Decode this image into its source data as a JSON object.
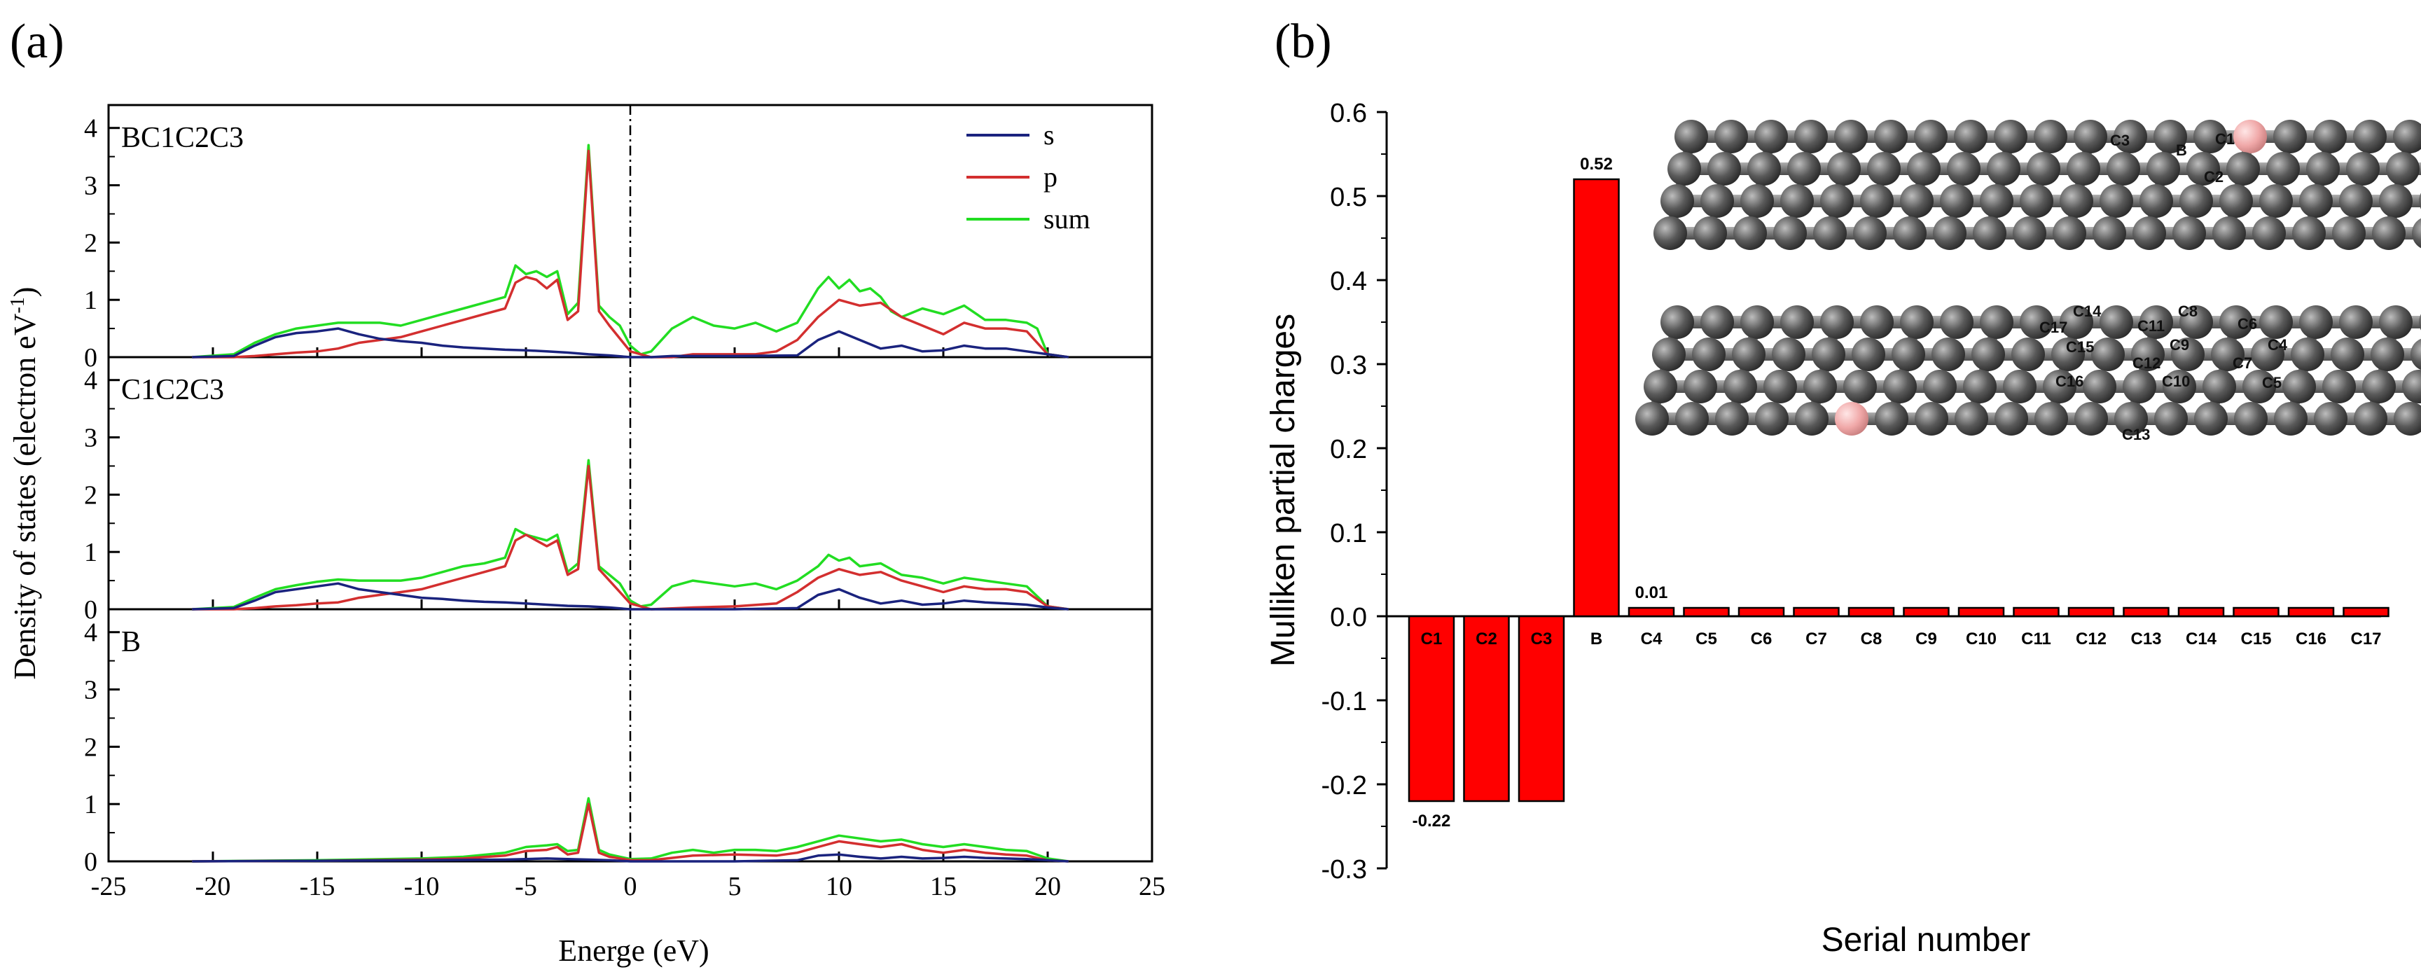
{
  "panel_labels": {
    "a": "(a)",
    "b": "(b)"
  },
  "colors": {
    "s": "#1a237e",
    "p": "#d32f2f",
    "sum": "#22dd22",
    "bar": "#ff0000",
    "atom_c": "#555555",
    "atom_b": "#f0a8a8"
  },
  "chart_data": [
    {
      "type": "line",
      "title": "",
      "xlabel": "Energe (eV)",
      "ylabel": "Density of states (electron eV",
      "ylabel_sup": "-1",
      "ylabel_close": ")",
      "xlim": [
        -25,
        25
      ],
      "xticks": [
        "-25",
        "-20",
        "-15",
        "-10",
        "-5",
        "0",
        "5",
        "10",
        "15",
        "20",
        "25"
      ],
      "ylim": [
        0,
        4.4
      ],
      "yticks": [
        "0",
        "1",
        "2",
        "3",
        "4"
      ],
      "fermi_level": 0,
      "legend": {
        "placement": "top-right",
        "entries": [
          "s",
          "p",
          "sum"
        ]
      },
      "subplots": [
        {
          "label": "BC1C2C3",
          "series": [
            {
              "name": "s",
              "x": [
                -21,
                -19,
                -18,
                -17,
                -16,
                -15,
                -14,
                -13,
                -12,
                -11,
                -10,
                -9,
                -8,
                -7,
                -6,
                -5,
                -4,
                -3,
                -2,
                -1,
                0,
                1,
                2,
                5,
                8,
                9,
                10,
                11,
                12,
                13,
                14,
                15,
                16,
                17,
                18,
                19,
                20,
                21
              ],
              "values": [
                0,
                0.02,
                0.2,
                0.35,
                0.42,
                0.45,
                0.5,
                0.4,
                0.32,
                0.28,
                0.25,
                0.2,
                0.17,
                0.15,
                0.13,
                0.12,
                0.1,
                0.08,
                0.05,
                0.03,
                0,
                0,
                0.02,
                0.02,
                0.03,
                0.3,
                0.45,
                0.3,
                0.15,
                0.2,
                0.1,
                0.12,
                0.2,
                0.15,
                0.15,
                0.1,
                0.05,
                0
              ]
            },
            {
              "name": "p",
              "x": [
                -21,
                -19,
                -18,
                -17,
                -16,
                -15,
                -14,
                -13,
                -12,
                -11,
                -10,
                -9,
                -8,
                -7,
                -6,
                -5.5,
                -5,
                -4.5,
                -4,
                -3.5,
                -3,
                -2.5,
                -2,
                -1.5,
                -1,
                0,
                1,
                2,
                3,
                5,
                6,
                7,
                8,
                9,
                10,
                11,
                12,
                13,
                14,
                15,
                16,
                17,
                18,
                19,
                20,
                21
              ],
              "values": [
                0,
                0,
                0.02,
                0.05,
                0.08,
                0.1,
                0.15,
                0.25,
                0.3,
                0.35,
                0.45,
                0.55,
                0.65,
                0.75,
                0.85,
                1.3,
                1.4,
                1.35,
                1.2,
                1.35,
                0.65,
                0.8,
                3.6,
                0.8,
                0.55,
                0.1,
                0,
                0,
                0.05,
                0.05,
                0.05,
                0.1,
                0.3,
                0.7,
                1.0,
                0.9,
                0.95,
                0.7,
                0.55,
                0.4,
                0.6,
                0.5,
                0.5,
                0.45,
                0.05,
                0
              ]
            },
            {
              "name": "sum",
              "x": [
                -21,
                -19,
                -18,
                -17,
                -16,
                -15,
                -14,
                -13,
                -12,
                -11,
                -10,
                -9,
                -8,
                -7,
                -6,
                -5.5,
                -5,
                -4.5,
                -4,
                -3.5,
                -3,
                -2.5,
                -2,
                -1.5,
                -1,
                -0.5,
                0,
                0.5,
                1,
                2,
                3,
                4,
                5,
                6,
                7,
                8,
                8.5,
                9,
                9.5,
                10,
                10.5,
                11,
                11.5,
                12,
                12.5,
                13,
                14,
                15,
                16,
                17,
                18,
                19,
                19.5,
                20,
                21
              ],
              "values": [
                0,
                0.05,
                0.25,
                0.4,
                0.5,
                0.55,
                0.6,
                0.6,
                0.6,
                0.55,
                0.65,
                0.75,
                0.85,
                0.95,
                1.05,
                1.6,
                1.45,
                1.5,
                1.4,
                1.5,
                0.75,
                0.95,
                3.7,
                0.9,
                0.7,
                0.55,
                0.2,
                0.05,
                0.1,
                0.5,
                0.7,
                0.55,
                0.5,
                0.6,
                0.45,
                0.6,
                0.9,
                1.2,
                1.4,
                1.2,
                1.35,
                1.15,
                1.2,
                1.05,
                0.8,
                0.7,
                0.85,
                0.75,
                0.9,
                0.65,
                0.65,
                0.6,
                0.5,
                0.05,
                0
              ]
            }
          ]
        },
        {
          "label": "C1C2C3",
          "series": [
            {
              "name": "s",
              "x": [
                -21,
                -19,
                -18,
                -17,
                -16,
                -15,
                -14,
                -13,
                -12,
                -11,
                -10,
                -9,
                -8,
                -7,
                -6,
                -5,
                -4,
                -3,
                -2,
                -1,
                0,
                5,
                8,
                9,
                10,
                11,
                12,
                13,
                14,
                15,
                16,
                17,
                18,
                19,
                20,
                21
              ],
              "values": [
                0,
                0.02,
                0.15,
                0.3,
                0.35,
                0.4,
                0.45,
                0.35,
                0.3,
                0.25,
                0.2,
                0.18,
                0.15,
                0.13,
                0.12,
                0.1,
                0.08,
                0.06,
                0.05,
                0.03,
                0,
                0,
                0.02,
                0.25,
                0.35,
                0.2,
                0.1,
                0.15,
                0.08,
                0.1,
                0.15,
                0.12,
                0.1,
                0.08,
                0.03,
                0
              ]
            },
            {
              "name": "p",
              "x": [
                -21,
                -19,
                -18,
                -17,
                -16,
                -15,
                -14,
                -13,
                -12,
                -11,
                -10,
                -9,
                -8,
                -7,
                -6,
                -5.5,
                -5,
                -4.5,
                -4,
                -3.5,
                -3,
                -2.5,
                -2,
                -1.5,
                -1,
                0,
                1,
                3,
                5,
                7,
                8,
                9,
                10,
                11,
                12,
                13,
                14,
                15,
                16,
                17,
                18,
                19,
                20,
                21
              ],
              "values": [
                0,
                0,
                0.02,
                0.05,
                0.07,
                0.1,
                0.12,
                0.2,
                0.25,
                0.3,
                0.35,
                0.45,
                0.55,
                0.65,
                0.75,
                1.2,
                1.3,
                1.2,
                1.1,
                1.2,
                0.6,
                0.7,
                2.5,
                0.7,
                0.5,
                0.1,
                0,
                0.03,
                0.05,
                0.1,
                0.3,
                0.55,
                0.7,
                0.6,
                0.65,
                0.5,
                0.4,
                0.3,
                0.4,
                0.35,
                0.35,
                0.3,
                0.05,
                0
              ]
            },
            {
              "name": "sum",
              "x": [
                -21,
                -19,
                -18,
                -17,
                -16,
                -15,
                -14,
                -13,
                -12,
                -11,
                -10,
                -9,
                -8,
                -7,
                -6,
                -5.5,
                -5,
                -4.5,
                -4,
                -3.5,
                -3,
                -2.5,
                -2,
                -1.5,
                -1,
                -0.5,
                0,
                0.5,
                1,
                2,
                3,
                4,
                5,
                6,
                7,
                8,
                9,
                9.5,
                10,
                10.5,
                11,
                12,
                13,
                14,
                15,
                16,
                17,
                18,
                19,
                20,
                21
              ],
              "values": [
                0,
                0.04,
                0.2,
                0.35,
                0.42,
                0.48,
                0.52,
                0.5,
                0.5,
                0.5,
                0.55,
                0.65,
                0.75,
                0.8,
                0.9,
                1.4,
                1.3,
                1.25,
                1.2,
                1.3,
                0.65,
                0.8,
                2.6,
                0.75,
                0.6,
                0.45,
                0.15,
                0.05,
                0.08,
                0.4,
                0.5,
                0.45,
                0.4,
                0.45,
                0.35,
                0.5,
                0.75,
                0.95,
                0.85,
                0.9,
                0.75,
                0.8,
                0.6,
                0.55,
                0.45,
                0.55,
                0.5,
                0.45,
                0.4,
                0.05,
                0
              ]
            }
          ]
        },
        {
          "label": "B",
          "series": [
            {
              "name": "s",
              "x": [
                -21,
                -15,
                -10,
                -6,
                -5,
                -4,
                -3,
                -2,
                -1,
                0,
                5,
                8,
                9,
                10,
                11,
                12,
                13,
                14,
                15,
                16,
                17,
                18,
                19,
                20,
                21
              ],
              "values": [
                0,
                0.01,
                0.02,
                0.03,
                0.04,
                0.05,
                0.04,
                0.03,
                0.02,
                0,
                0,
                0.02,
                0.1,
                0.12,
                0.08,
                0.05,
                0.08,
                0.05,
                0.06,
                0.08,
                0.06,
                0.05,
                0.04,
                0.02,
                0
              ]
            },
            {
              "name": "p",
              "x": [
                -21,
                -15,
                -10,
                -8,
                -6,
                -5,
                -4,
                -3.5,
                -3,
                -2.5,
                -2,
                -1.5,
                -1,
                -0.5,
                0,
                1,
                3,
                5,
                7,
                8,
                9,
                10,
                11,
                12,
                13,
                14,
                15,
                16,
                17,
                18,
                19,
                20,
                21
              ],
              "values": [
                0,
                0.01,
                0.03,
                0.05,
                0.1,
                0.18,
                0.2,
                0.25,
                0.12,
                0.15,
                1.0,
                0.15,
                0.08,
                0.05,
                0.02,
                0.02,
                0.1,
                0.12,
                0.1,
                0.15,
                0.25,
                0.35,
                0.3,
                0.25,
                0.3,
                0.2,
                0.15,
                0.2,
                0.15,
                0.12,
                0.1,
                0.02,
                0
              ]
            },
            {
              "name": "sum",
              "x": [
                -21,
                -15,
                -10,
                -8,
                -6,
                -5,
                -4,
                -3.5,
                -3,
                -2.5,
                -2,
                -1.5,
                -1,
                -0.5,
                0,
                1,
                2,
                3,
                4,
                5,
                6,
                7,
                8,
                9,
                10,
                11,
                12,
                13,
                14,
                15,
                16,
                17,
                18,
                19,
                20,
                21
              ],
              "values": [
                0,
                0.02,
                0.05,
                0.08,
                0.15,
                0.25,
                0.28,
                0.3,
                0.18,
                0.2,
                1.1,
                0.2,
                0.12,
                0.08,
                0.04,
                0.05,
                0.15,
                0.2,
                0.15,
                0.2,
                0.2,
                0.18,
                0.25,
                0.35,
                0.45,
                0.4,
                0.35,
                0.38,
                0.3,
                0.25,
                0.3,
                0.25,
                0.2,
                0.18,
                0.05,
                0
              ]
            }
          ]
        }
      ]
    },
    {
      "type": "bar",
      "title": "",
      "xlabel": "Serial number",
      "ylabel": "Mulliken partial charges",
      "ylim": [
        -0.3,
        0.6
      ],
      "yticks": [
        "-0.3",
        "-0.2",
        "-0.1",
        "0.0",
        "0.1",
        "0.2",
        "0.3",
        "0.4",
        "0.5",
        "0.6"
      ],
      "categories": [
        "C1",
        "C2",
        "C3",
        "B",
        "C4",
        "C5",
        "C6",
        "C7",
        "C8",
        "C9",
        "C10",
        "C11",
        "C12",
        "C13",
        "C14",
        "C15",
        "C16",
        "C17"
      ],
      "values": [
        -0.22,
        -0.22,
        -0.22,
        0.52,
        0.01,
        0.01,
        0.01,
        0.01,
        0.01,
        0.01,
        0.01,
        0.01,
        0.01,
        0.01,
        0.01,
        0.01,
        0.01,
        0.01
      ],
      "data_labels": [
        {
          "index": 0,
          "text": "-0.22"
        },
        {
          "index": 3,
          "text": "0.52"
        },
        {
          "index": 4,
          "text": "0.01"
        }
      ]
    }
  ],
  "inset": {
    "top_sheet_labels": [
      "C3",
      "B",
      "C1",
      "C2"
    ],
    "bottom_sheet_labels": [
      "C14",
      "C8",
      "C17",
      "C11",
      "C6",
      "C15",
      "C9",
      "C4",
      "C12",
      "C7",
      "C16",
      "C10",
      "C5",
      "C13"
    ]
  }
}
